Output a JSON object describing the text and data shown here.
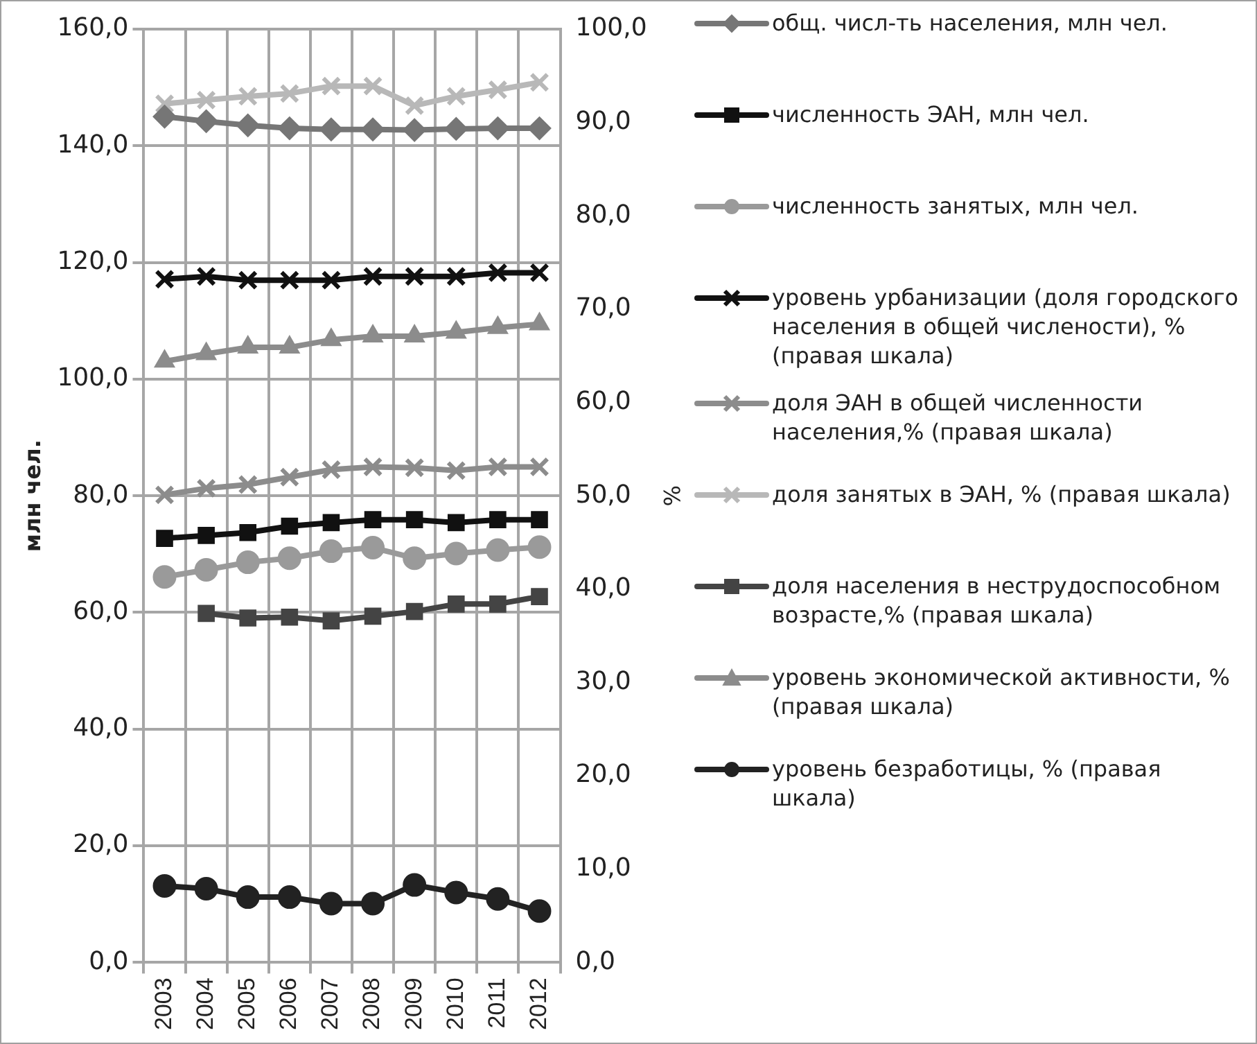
{
  "chart_data": {
    "type": "line",
    "ylabel": "млн чел.",
    "y2label": "%",
    "categories": [
      "2003",
      "2004",
      "2005",
      "2006",
      "2007",
      "2008",
      "2009",
      "2010",
      "2011",
      "2012"
    ],
    "ylim": [
      0,
      160
    ],
    "yticks": [
      {
        "value": 0,
        "label": "0,0"
      },
      {
        "value": 20,
        "label": "20,0"
      },
      {
        "value": 40,
        "label": "40,0"
      },
      {
        "value": 60,
        "label": "60,0"
      },
      {
        "value": 80,
        "label": "80,0"
      },
      {
        "value": 100,
        "label": "100,0"
      },
      {
        "value": 120,
        "label": "120,0"
      },
      {
        "value": 140,
        "label": "140,0"
      },
      {
        "value": 160,
        "label": "160,0"
      }
    ],
    "y2lim": [
      0,
      100
    ],
    "y2ticks": [
      {
        "value": 0,
        "label": "0,0"
      },
      {
        "value": 10,
        "label": "10,0"
      },
      {
        "value": 20,
        "label": "20,0"
      },
      {
        "value": 30,
        "label": "30,0"
      },
      {
        "value": 40,
        "label": "40,0"
      },
      {
        "value": 50,
        "label": "50,0"
      },
      {
        "value": 60,
        "label": "60,0"
      },
      {
        "value": 70,
        "label": "70,0"
      },
      {
        "value": 80,
        "label": "80,0"
      },
      {
        "value": 90,
        "label": "90,0"
      },
      {
        "value": 100,
        "label": "100,0"
      }
    ],
    "grid": true,
    "legend": "right",
    "line_style": "solid",
    "series": [
      {
        "name": "общ. числ-ть населения, млн чел.",
        "color": "#767676",
        "marker": "diamond",
        "values": [
          145.0,
          144.2,
          143.5,
          143.0,
          142.8,
          142.8,
          142.7,
          142.9,
          143.0,
          143.0
        ]
      },
      {
        "name": "численность ЭАН, млн  чел.",
        "color": "#111111",
        "marker": "square",
        "values": [
          72.7,
          73.2,
          73.7,
          74.8,
          75.4,
          75.9,
          75.9,
          75.4,
          75.9,
          75.9
        ]
      },
      {
        "name": "численность занятых, млн  чел.",
        "color": "#9a9a9a",
        "marker": "circle",
        "values": [
          66.1,
          67.3,
          68.6,
          69.3,
          70.5,
          71.1,
          69.3,
          70.1,
          70.7,
          71.2
        ]
      },
      {
        "name": "уровень урбанизации (доля городского населения в общей числености), % (правая шкала)",
        "color": "#111111",
        "marker": "cross",
        "axis": "y2",
        "values": [
          73.2,
          73.5,
          73.1,
          73.1,
          73.1,
          73.5,
          73.5,
          73.5,
          73.9,
          73.9
        ]
      },
      {
        "name": "доля ЭАН в общей численности населения,%  (правая шкала)",
        "color": "#8c8c8c",
        "marker": "cross",
        "axis": "y2",
        "values": [
          50.1,
          50.8,
          51.2,
          52.0,
          52.8,
          53.1,
          53.0,
          52.7,
          53.1,
          53.1
        ]
      },
      {
        "name": "доля занятых в ЭАН, % (правая шкала)",
        "color": "#b8b8b8",
        "marker": "cross",
        "axis": "y2",
        "values": [
          92.0,
          92.4,
          92.8,
          93.1,
          93.9,
          93.9,
          91.8,
          92.8,
          93.5,
          94.3
        ]
      },
      {
        "name": "доля населения в неструдоспособном возрасте,% (правая шкала)",
        "color": "#444444",
        "marker": "square",
        "axis": "y2",
        "values": [
          null,
          37.4,
          36.9,
          37.0,
          36.6,
          37.1,
          37.6,
          38.4,
          38.4,
          39.2
        ]
      },
      {
        "name": "уровень экономической активности, %  (правая шкала)",
        "color": "#8c8c8c",
        "marker": "triangle",
        "axis": "y2",
        "values": [
          64.4,
          65.2,
          65.9,
          65.9,
          66.7,
          67.1,
          67.1,
          67.5,
          68.0,
          68.4
        ]
      },
      {
        "name": "уровень безработицы, % (правая шкала)",
        "color": "#222222",
        "marker": "circle",
        "axis": "y2",
        "values": [
          8.2,
          7.9,
          7.0,
          7.0,
          6.3,
          6.3,
          8.3,
          7.5,
          6.8,
          5.5
        ]
      }
    ]
  }
}
